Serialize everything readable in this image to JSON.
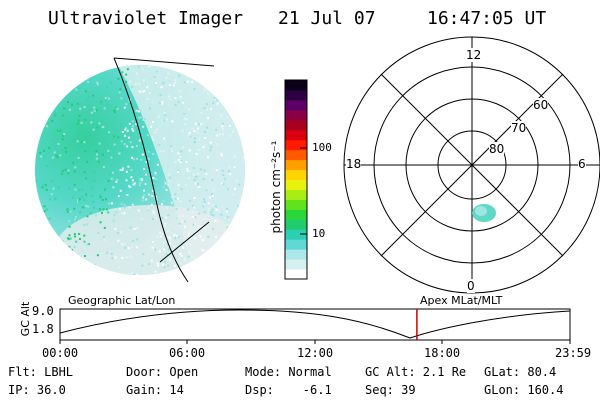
{
  "header": {
    "instrument": "Ultraviolet Imager",
    "date": "21 Jul 07",
    "time": "16:47:05 UT"
  },
  "colorbar": {
    "unit_label": "photon cm⁻²s⁻¹",
    "ticks": [
      "100",
      "10"
    ],
    "colors": [
      "#ffffff",
      "#d6f0f2",
      "#aee7ea",
      "#5fd8d6",
      "#2ccfb4",
      "#21cc6f",
      "#2ad73a",
      "#62e21e",
      "#a9ee12",
      "#e8f20d",
      "#ffd400",
      "#ff9f00",
      "#ff5a00",
      "#ff1a00",
      "#d80010",
      "#a8001f",
      "#8a0044",
      "#5a0066",
      "#2d0044",
      "#0a0018"
    ]
  },
  "polar": {
    "mlt_labels": {
      "top": "12",
      "left": "18",
      "right": "6",
      "bottom": "0"
    },
    "mlat_labels": [
      "60",
      "70",
      "80"
    ]
  },
  "panel_labels": {
    "left": "Geographic Lat/Lon",
    "right": "Apex MLat/MLT"
  },
  "alt_plot": {
    "ylabel": "GC Alt",
    "y_ticks": [
      "9.0",
      "1.8"
    ],
    "x_ticks": [
      "00:00",
      "06:00",
      "12:00",
      "18:00",
      "23:59"
    ],
    "ylim": [
      1.8,
      9.0
    ],
    "current_time": "16:47",
    "marker_color": "#cc0000"
  },
  "info": {
    "flt": "Flt: LBHL",
    "ip": "IP: 36.0",
    "door": "Door: Open",
    "gain": "Gain: 14",
    "mode": "Mode: Normal",
    "dsp": "Dsp:    -6.1",
    "gcalt": "GC Alt: 2.1 Re",
    "seq": "Seq: 39",
    "glat": "GLat: 80.4",
    "glon": "GLon: 160.4"
  }
}
